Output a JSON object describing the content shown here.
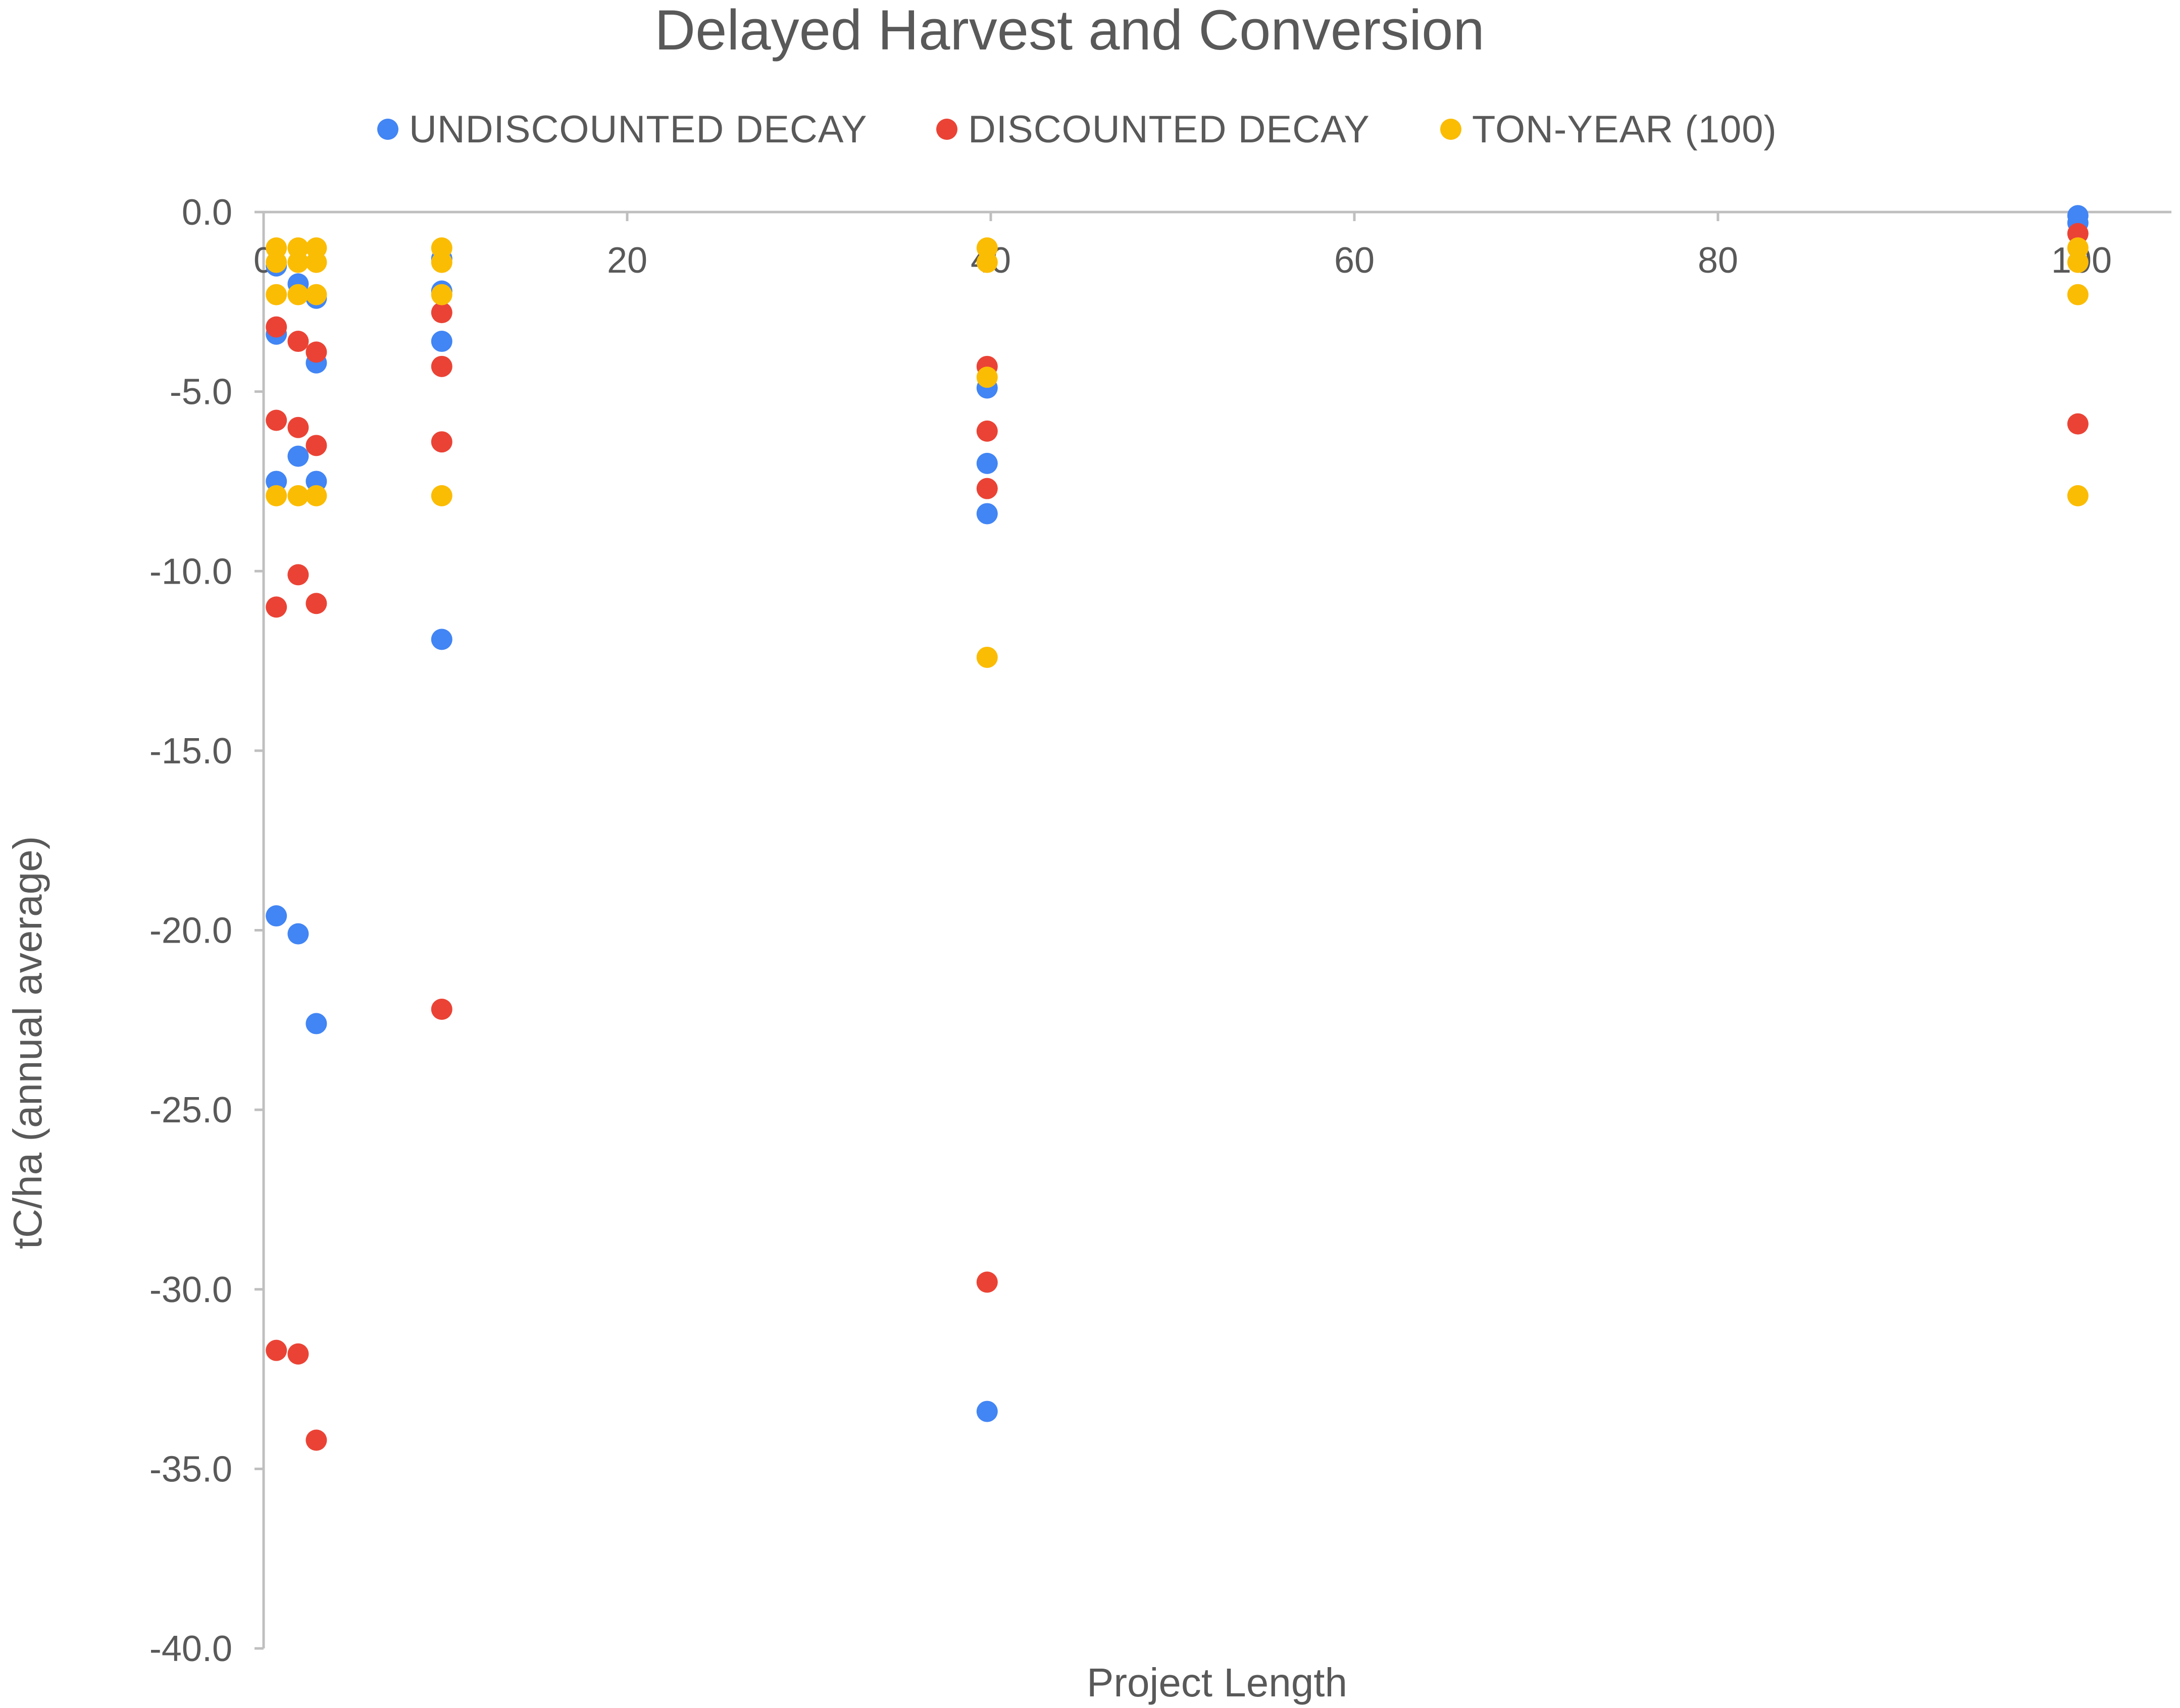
{
  "chart_data": {
    "type": "scatter",
    "title": "Delayed Harvest and Conversion",
    "xlabel": "Project Length",
    "ylabel": "tC/ha (annual average)",
    "xlim": [
      0,
      105
    ],
    "ylim": [
      -40,
      0
    ],
    "x_ticks": [
      0,
      20,
      40,
      60,
      80,
      100
    ],
    "x_tick_labels": [
      "0",
      "20",
      "40",
      "60",
      "80",
      "100"
    ],
    "y_ticks": [
      0,
      -5,
      -10,
      -15,
      -20,
      -25,
      -30,
      -35,
      -40
    ],
    "y_tick_labels": [
      "0.0",
      "-5.0",
      "-10.0",
      "-15.0",
      "-20.0",
      "-25.0",
      "-30.0",
      "-35.0",
      "-40.0"
    ],
    "grid": false,
    "legend_position": "top",
    "series": [
      {
        "name": "UNDISCOUNTED DECAY",
        "color": "#4285f4",
        "points": [
          [
            0.7,
            -1.5
          ],
          [
            0.7,
            -3.4
          ],
          [
            0.7,
            -7.5
          ],
          [
            0.7,
            -19.6
          ],
          [
            1.9,
            -2.0
          ],
          [
            1.9,
            -6.8
          ],
          [
            1.9,
            -20.1
          ],
          [
            2.9,
            -2.4
          ],
          [
            2.9,
            -4.2
          ],
          [
            2.9,
            -7.5
          ],
          [
            2.9,
            -22.6
          ],
          [
            9.8,
            -1.3
          ],
          [
            9.8,
            -2.2
          ],
          [
            9.8,
            -3.6
          ],
          [
            9.8,
            -11.9
          ],
          [
            39.8,
            -4.9
          ],
          [
            39.8,
            -7.0
          ],
          [
            39.8,
            -8.4
          ],
          [
            39.8,
            -33.4
          ],
          [
            99.8,
            -0.1
          ],
          [
            99.8,
            -0.3
          ]
        ]
      },
      {
        "name": "DISCOUNTED DECAY",
        "color": "#ea4335",
        "points": [
          [
            0.7,
            -3.2
          ],
          [
            0.7,
            -5.8
          ],
          [
            0.7,
            -11.0
          ],
          [
            0.7,
            -31.7
          ],
          [
            1.9,
            -3.6
          ],
          [
            1.9,
            -6.0
          ],
          [
            1.9,
            -10.1
          ],
          [
            1.9,
            -31.8
          ],
          [
            2.9,
            -3.9
          ],
          [
            2.9,
            -6.5
          ],
          [
            2.9,
            -10.9
          ],
          [
            2.9,
            -34.2
          ],
          [
            9.8,
            -2.8
          ],
          [
            9.8,
            -4.3
          ],
          [
            9.8,
            -6.4
          ],
          [
            9.8,
            -22.2
          ],
          [
            39.8,
            -4.3
          ],
          [
            39.8,
            -6.1
          ],
          [
            39.8,
            -7.7
          ],
          [
            39.8,
            -29.8
          ],
          [
            99.8,
            -0.6
          ],
          [
            99.8,
            -5.9
          ]
        ]
      },
      {
        "name": "TON-YEAR (100)",
        "color": "#fbbc04",
        "points": [
          [
            0.7,
            -1.0
          ],
          [
            0.7,
            -1.4
          ],
          [
            0.7,
            -2.3
          ],
          [
            0.7,
            -7.9
          ],
          [
            1.9,
            -1.0
          ],
          [
            1.9,
            -1.4
          ],
          [
            1.9,
            -2.3
          ],
          [
            1.9,
            -7.9
          ],
          [
            2.9,
            -1.0
          ],
          [
            2.9,
            -1.4
          ],
          [
            2.9,
            -2.3
          ],
          [
            2.9,
            -7.9
          ],
          [
            9.8,
            -1.0
          ],
          [
            9.8,
            -1.4
          ],
          [
            9.8,
            -2.3
          ],
          [
            9.8,
            -7.9
          ],
          [
            39.8,
            -1.0
          ],
          [
            39.8,
            -1.4
          ],
          [
            39.8,
            -4.6
          ],
          [
            39.8,
            -12.4
          ],
          [
            99.8,
            -1.0
          ],
          [
            99.8,
            -1.4
          ],
          [
            99.8,
            -2.3
          ],
          [
            99.8,
            -7.9
          ]
        ]
      }
    ]
  }
}
